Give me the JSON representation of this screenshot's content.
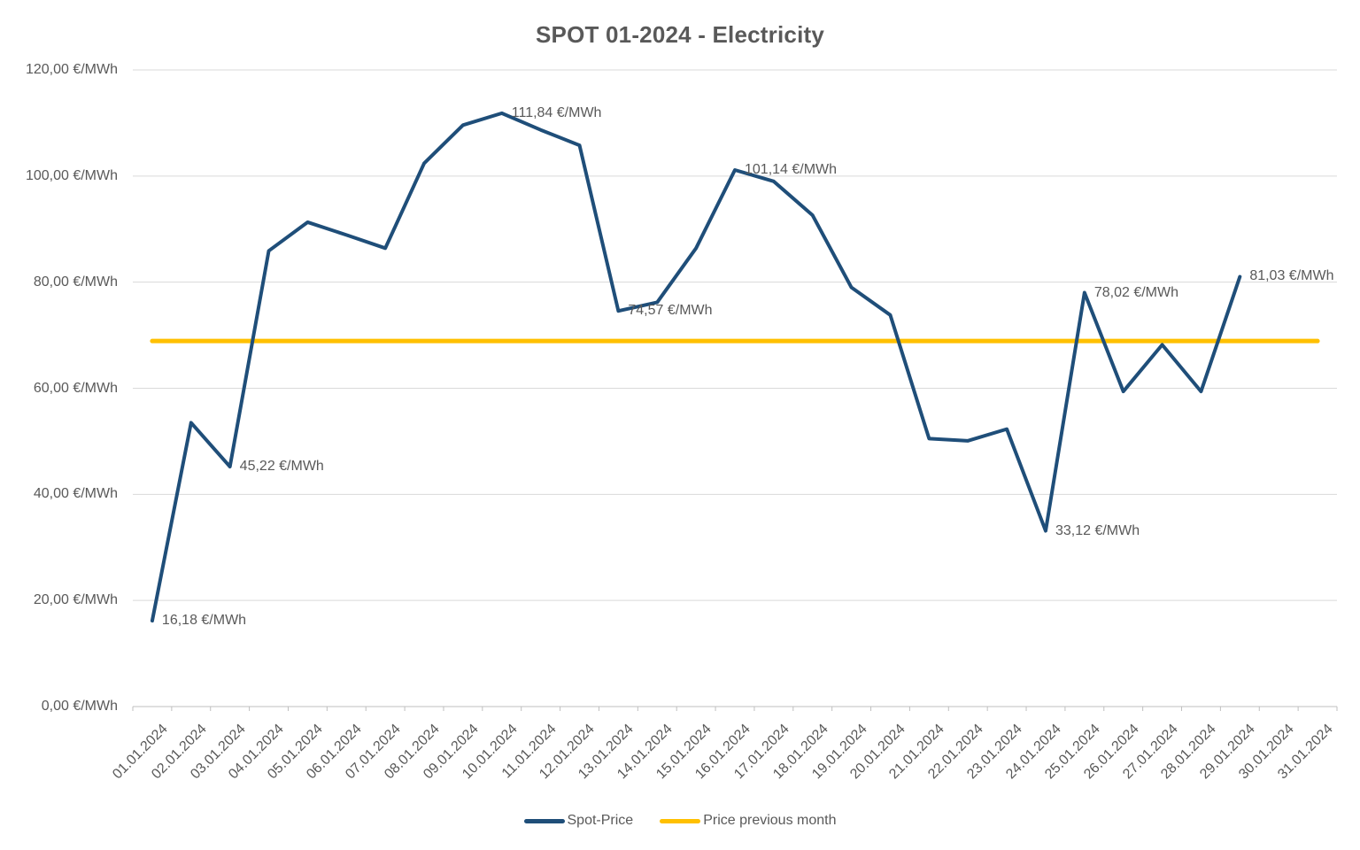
{
  "title": "SPOT 01-2024 - Electricity",
  "chart_data": {
    "type": "line",
    "title": "SPOT 01-2024 - Electricity",
    "grid": true,
    "legend_position": "bottom",
    "x_categories": [
      "01.01.2024",
      "02.01.2024",
      "03.01.2024",
      "04.01.2024",
      "05.01.2024",
      "06.01.2024",
      "07.01.2024",
      "08.01.2024",
      "09.01.2024",
      "10.01.2024",
      "11.01.2024",
      "12.01.2024",
      "13.01.2024",
      "14.01.2024",
      "15.01.2024",
      "16.01.2024",
      "17.01.2024",
      "18.01.2024",
      "19.01.2024",
      "20.01.2024",
      "21.01.2024",
      "22.01.2024",
      "23.01.2024",
      "24.01.2024",
      "25.01.2024",
      "26.01.2024",
      "27.01.2024",
      "28.01.2024",
      "29.01.2024",
      "30.01.2024",
      "31.01.2024"
    ],
    "y_axis": {
      "min": 0,
      "max": 120,
      "step": 20,
      "unit": "€/MWh",
      "ticks": [
        {
          "value": 0,
          "label": "0,00 €/MWh"
        },
        {
          "value": 20,
          "label": "20,00 €/MWh"
        },
        {
          "value": 40,
          "label": "40,00 €/MWh"
        },
        {
          "value": 60,
          "label": "60,00 €/MWh"
        },
        {
          "value": 80,
          "label": "80,00 €/MWh"
        },
        {
          "value": 100,
          "label": "100,00 €/MWh"
        },
        {
          "value": 120,
          "label": "120,00 €/MWh"
        }
      ]
    },
    "series": [
      {
        "name": "Spot-Price",
        "color": "#1F4E79",
        "values": [
          16.18,
          53.5,
          45.22,
          85.9,
          91.3,
          88.9,
          86.4,
          102.4,
          109.6,
          111.84,
          108.7,
          105.8,
          74.57,
          76.2,
          86.4,
          101.14,
          99.0,
          92.6,
          79.0,
          73.8,
          50.5,
          50.1,
          52.3,
          33.12,
          78.02,
          59.4,
          68.2,
          59.4,
          81.03
        ]
      },
      {
        "name": "Price previous month",
        "color": "#FFC000",
        "value": 68.9,
        "spans_full_month": true
      }
    ],
    "data_labels": [
      {
        "day": 1,
        "text": "16,18 €/MWh"
      },
      {
        "day": 3,
        "text": "45,22 €/MWh"
      },
      {
        "day": 10,
        "text": "111,84 €/MWh"
      },
      {
        "day": 13,
        "text": "74,57 €/MWh"
      },
      {
        "day": 16,
        "text": "101,14 €/MWh"
      },
      {
        "day": 24,
        "text": "33,12 €/MWh"
      },
      {
        "day": 25,
        "text": "78,02 €/MWh"
      },
      {
        "day": 29,
        "text": "81,03 €/MWh"
      }
    ],
    "legend": [
      {
        "label": "Spot-Price",
        "color": "#1F4E79"
      },
      {
        "label": "Price previous month",
        "color": "#FFC000"
      }
    ],
    "colors": {
      "gridline": "#D9D9D9",
      "axis": "#BFBFBF",
      "text": "#595959"
    }
  }
}
